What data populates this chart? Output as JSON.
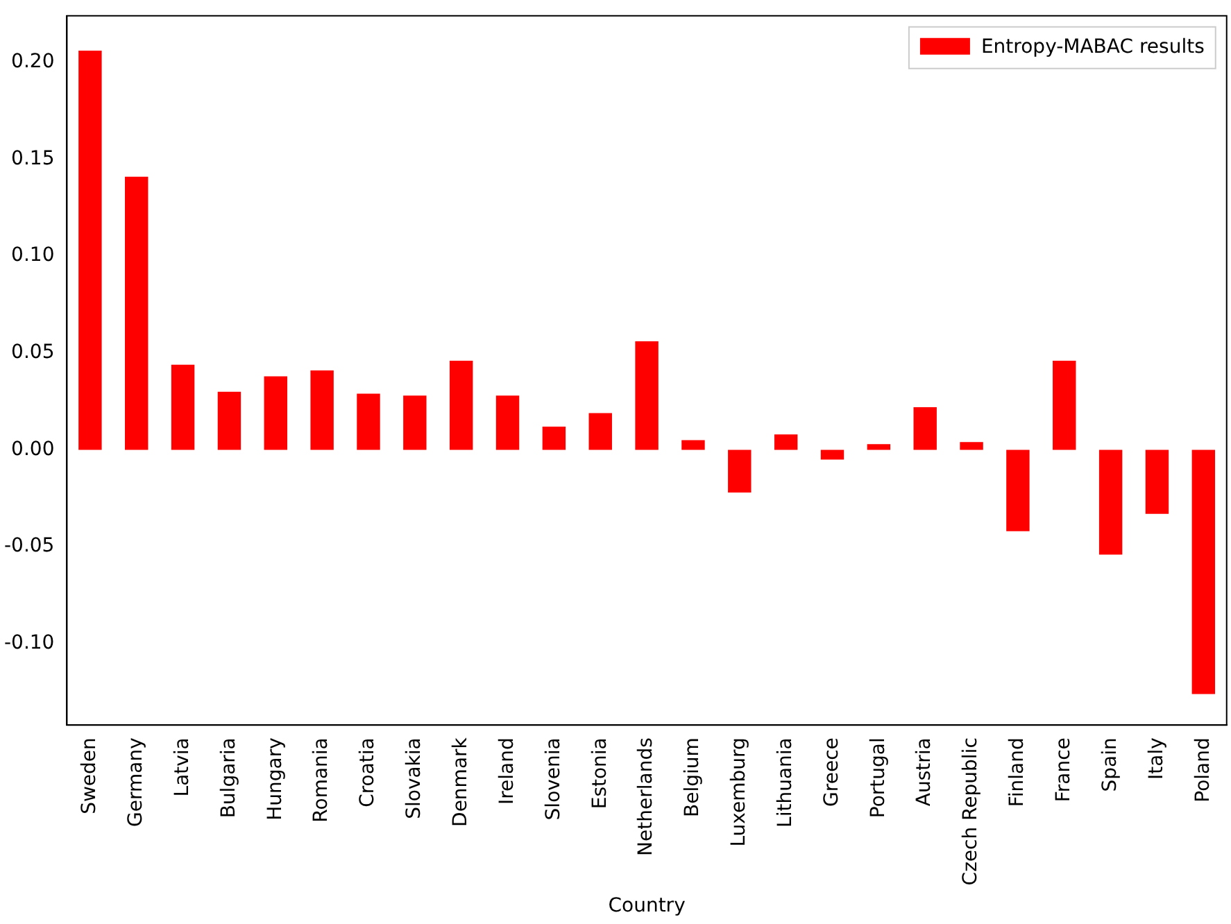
{
  "chart_data": {
    "type": "bar",
    "xlabel": "Country",
    "categories": [
      "Sweden",
      "Germany",
      "Latvia",
      "Bulgaria",
      "Hungary",
      "Romania",
      "Croatia",
      "Slovakia",
      "Denmark",
      "Ireland",
      "Slovenia",
      "Estonia",
      "Netherlands",
      "Belgium",
      "Luxemburg",
      "Lithuania",
      "Greece",
      "Portugal",
      "Austria",
      "Czech Republic",
      "Finland",
      "France",
      "Spain",
      "Italy",
      "Poland"
    ],
    "series": [
      {
        "name": "Entropy-MABAC results",
        "color": "#ff0000",
        "values": [
          0.206,
          0.141,
          0.044,
          0.03,
          0.038,
          0.041,
          0.029,
          0.028,
          0.046,
          0.028,
          0.012,
          0.019,
          0.056,
          0.005,
          -0.022,
          0.008,
          -0.005,
          0.003,
          0.022,
          0.004,
          -0.042,
          0.046,
          -0.054,
          -0.033,
          -0.126
        ]
      }
    ],
    "ylim": [
      -0.142,
      0.224
    ],
    "yticks": [
      {
        "value": -0.1,
        "label": "-0.10"
      },
      {
        "value": -0.05,
        "label": "-0.05"
      },
      {
        "value": 0,
        "label": "0.00"
      },
      {
        "value": 0.05,
        "label": "0.05"
      },
      {
        "value": 0.1,
        "label": "0.10"
      },
      {
        "value": 0.15,
        "label": "0.15"
      },
      {
        "value": 0.2,
        "label": "0.20"
      }
    ],
    "grid": false,
    "legend": "top right"
  }
}
